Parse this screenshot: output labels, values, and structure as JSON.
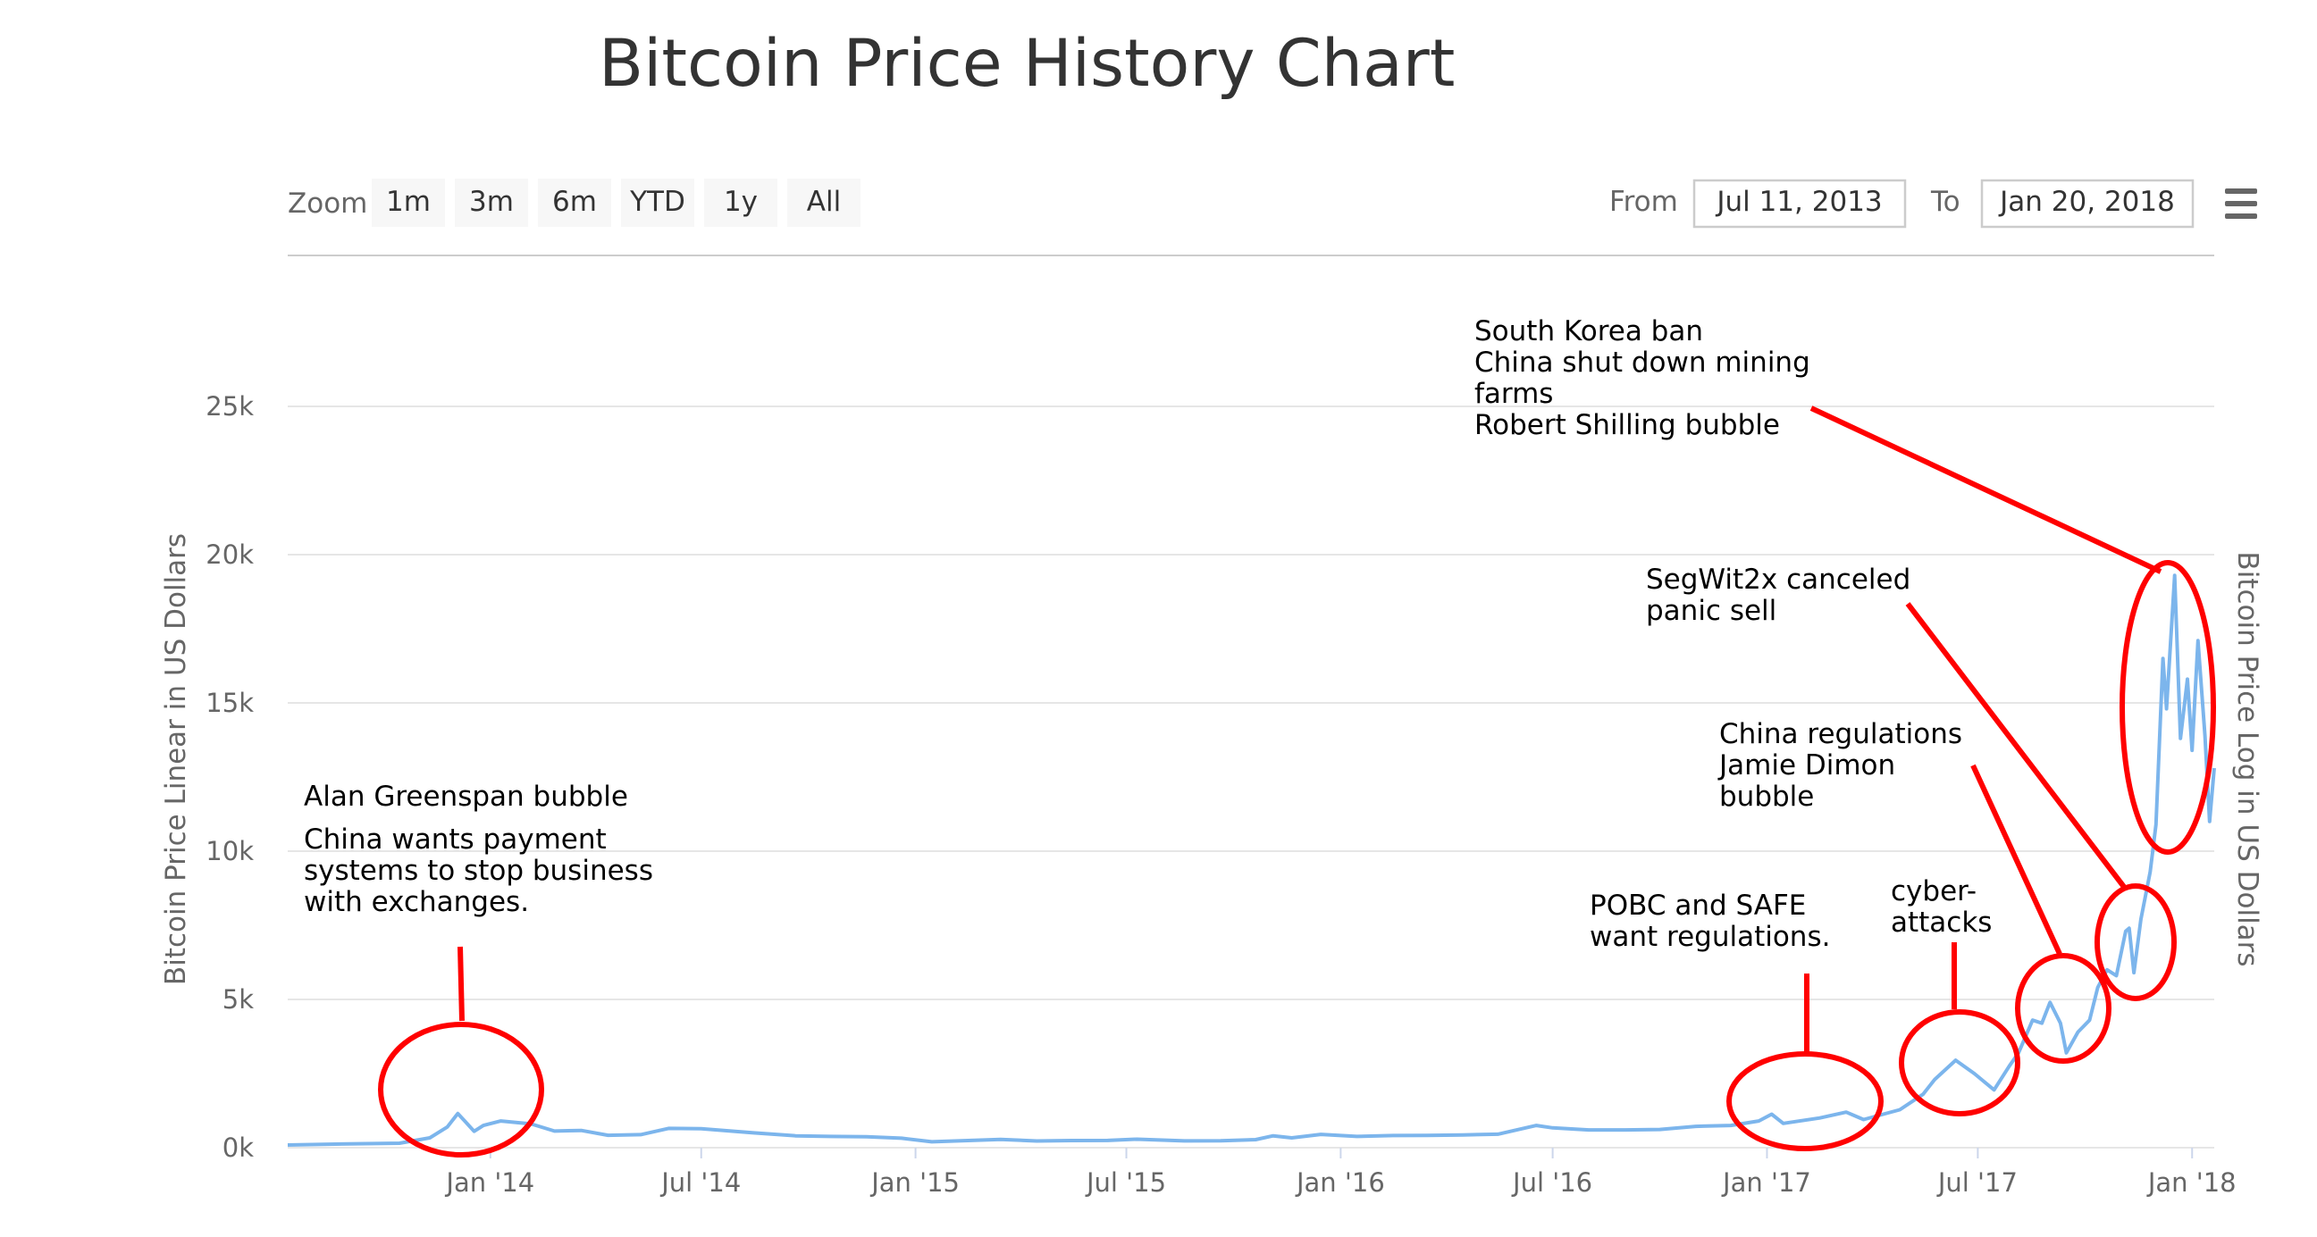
{
  "title": "Bitcoin Price History Chart",
  "zoom": {
    "label": "Zoom",
    "buttons": [
      "1m",
      "3m",
      "6m",
      "YTD",
      "1y",
      "All"
    ]
  },
  "range": {
    "from_label": "From",
    "from_value": "Jul 11, 2013",
    "to_label": "To",
    "to_value": "Jan 20, 2018"
  },
  "menu_icon": "hamburger-menu-icon",
  "colors": {
    "series": "#7cb5ec",
    "annotation_ink": "#ff0000",
    "grid": "#e6e6e6"
  },
  "chart_data": {
    "type": "line",
    "title": "Bitcoin Price History Chart",
    "ylabel": "Bitcoin Price Linear in US Dollars",
    "ylabel_right": "Bitcoin Price Log in US Dollars",
    "xlabel": "",
    "ylim": [
      0,
      25000
    ],
    "xlim": [
      "2013-07-11",
      "2018-01-20"
    ],
    "y_ticks": [
      {
        "value": 0,
        "label": "0k"
      },
      {
        "value": 5000,
        "label": "5k"
      },
      {
        "value": 10000,
        "label": "10k"
      },
      {
        "value": 15000,
        "label": "15k"
      },
      {
        "value": 20000,
        "label": "20k"
      },
      {
        "value": 25000,
        "label": "25k"
      }
    ],
    "x_ticks": [
      {
        "value": "2014-01-01",
        "label": "Jan '14"
      },
      {
        "value": "2014-07-01",
        "label": "Jul '14"
      },
      {
        "value": "2015-01-01",
        "label": "Jan '15"
      },
      {
        "value": "2015-07-01",
        "label": "Jul '15"
      },
      {
        "value": "2016-01-01",
        "label": "Jan '16"
      },
      {
        "value": "2016-07-01",
        "label": "Jul '16"
      },
      {
        "value": "2017-01-01",
        "label": "Jan '17"
      },
      {
        "value": "2017-07-01",
        "label": "Jul '17"
      },
      {
        "value": "2018-01-01",
        "label": "Jan '18"
      }
    ],
    "grid": true,
    "legend": "none",
    "series": [
      {
        "points": [
          [
            "2013-07-11",
            90
          ],
          [
            "2013-09-01",
            130
          ],
          [
            "2013-10-15",
            150
          ],
          [
            "2013-11-10",
            330
          ],
          [
            "2013-11-25",
            700
          ],
          [
            "2013-12-04",
            1150
          ],
          [
            "2013-12-10",
            900
          ],
          [
            "2013-12-18",
            550
          ],
          [
            "2013-12-26",
            750
          ],
          [
            "2014-01-10",
            900
          ],
          [
            "2014-02-05",
            800
          ],
          [
            "2014-02-25",
            560
          ],
          [
            "2014-03-20",
            580
          ],
          [
            "2014-04-12",
            420
          ],
          [
            "2014-05-10",
            440
          ],
          [
            "2014-06-03",
            650
          ],
          [
            "2014-07-01",
            640
          ],
          [
            "2014-08-15",
            500
          ],
          [
            "2014-09-20",
            400
          ],
          [
            "2014-10-20",
            380
          ],
          [
            "2014-11-20",
            370
          ],
          [
            "2014-12-20",
            320
          ],
          [
            "2015-01-15",
            200
          ],
          [
            "2015-02-15",
            240
          ],
          [
            "2015-03-15",
            280
          ],
          [
            "2015-04-15",
            225
          ],
          [
            "2015-05-15",
            240
          ],
          [
            "2015-06-15",
            245
          ],
          [
            "2015-07-10",
            285
          ],
          [
            "2015-08-20",
            230
          ],
          [
            "2015-09-20",
            235
          ],
          [
            "2015-10-20",
            270
          ],
          [
            "2015-11-04",
            400
          ],
          [
            "2015-11-20",
            330
          ],
          [
            "2015-12-15",
            450
          ],
          [
            "2016-01-15",
            380
          ],
          [
            "2016-02-15",
            410
          ],
          [
            "2016-03-15",
            415
          ],
          [
            "2016-04-15",
            430
          ],
          [
            "2016-05-15",
            455
          ],
          [
            "2016-06-17",
            750
          ],
          [
            "2016-07-01",
            670
          ],
          [
            "2016-08-01",
            600
          ],
          [
            "2016-09-01",
            600
          ],
          [
            "2016-10-01",
            615
          ],
          [
            "2016-11-01",
            720
          ],
          [
            "2016-12-01",
            750
          ],
          [
            "2016-12-25",
            900
          ],
          [
            "2017-01-05",
            1130
          ],
          [
            "2017-01-15",
            820
          ],
          [
            "2017-02-15",
            1000
          ],
          [
            "2017-03-10",
            1200
          ],
          [
            "2017-03-25",
            950
          ],
          [
            "2017-04-25",
            1280
          ],
          [
            "2017-05-15",
            1800
          ],
          [
            "2017-05-25",
            2300
          ],
          [
            "2017-06-12",
            2950
          ],
          [
            "2017-06-28",
            2500
          ],
          [
            "2017-07-15",
            1950
          ],
          [
            "2017-07-28",
            2750
          ],
          [
            "2017-08-05",
            3200
          ],
          [
            "2017-08-17",
            4300
          ],
          [
            "2017-08-25",
            4200
          ],
          [
            "2017-09-01",
            4900
          ],
          [
            "2017-09-10",
            4200
          ],
          [
            "2017-09-15",
            3200
          ],
          [
            "2017-09-25",
            3900
          ],
          [
            "2017-10-05",
            4300
          ],
          [
            "2017-10-12",
            5400
          ],
          [
            "2017-10-20",
            6000
          ],
          [
            "2017-10-28",
            5800
          ],
          [
            "2017-11-05",
            7300
          ],
          [
            "2017-11-08",
            7400
          ],
          [
            "2017-11-12",
            5900
          ],
          [
            "2017-11-18",
            7700
          ],
          [
            "2017-11-26",
            9300
          ],
          [
            "2017-12-01",
            10900
          ],
          [
            "2017-12-07",
            16500
          ],
          [
            "2017-12-10",
            14800
          ],
          [
            "2017-12-17",
            19300
          ],
          [
            "2017-12-22",
            13800
          ],
          [
            "2017-12-28",
            15800
          ],
          [
            "2018-01-01",
            13400
          ],
          [
            "2018-01-06",
            17100
          ],
          [
            "2018-01-12",
            13900
          ],
          [
            "2018-01-16",
            11000
          ],
          [
            "2018-01-20",
            12800
          ]
        ]
      }
    ],
    "annotations": [
      {
        "id": "a1",
        "lines": [
          "Alan Greenspan bubble",
          "China wants payment",
          "systems to stop business",
          "with exchanges."
        ]
      },
      {
        "id": "a2",
        "lines": [
          "POBC and SAFE",
          "want regulations."
        ]
      },
      {
        "id": "a3",
        "lines": [
          "cyber-",
          "attacks"
        ]
      },
      {
        "id": "a4",
        "lines": [
          "China regulations",
          "Jamie Dimon",
          "bubble"
        ]
      },
      {
        "id": "a5",
        "lines": [
          "SegWit2x canceled",
          "panic sell"
        ]
      },
      {
        "id": "a6",
        "lines": [
          "South Korea ban",
          "China shut down mining",
          "farms",
          "Robert Shilling bubble"
        ]
      }
    ]
  }
}
